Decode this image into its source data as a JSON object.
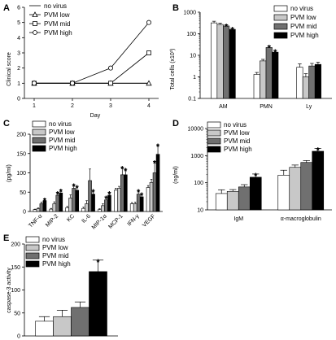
{
  "colors": {
    "no_virus": "#ffffff",
    "pvm_low": "#c8c8c8",
    "pvm_mid": "#707070",
    "pvm_high": "#000000"
  },
  "legend_labels": [
    "no virus",
    "PVM low",
    "PVM mid",
    "PVM high"
  ],
  "chart_data": [
    {
      "panel": "A",
      "type": "line",
      "x": [
        1,
        2,
        3,
        4
      ],
      "xlabel": "Day",
      "ylabel": "Clinical score",
      "ylim": [
        0,
        6
      ],
      "yticks": [
        0,
        1,
        2,
        3,
        4,
        5,
        6
      ],
      "legend": "top-left",
      "series": [
        {
          "name": "no virus",
          "marker": "none",
          "values": [
            1,
            1,
            1,
            1
          ]
        },
        {
          "name": "PVM low",
          "marker": "triangle",
          "values": [
            1,
            1,
            1,
            1
          ]
        },
        {
          "name": "PVM mid",
          "marker": "square",
          "values": [
            1,
            1,
            1,
            3
          ]
        },
        {
          "name": "PVM high",
          "marker": "circle",
          "values": [
            1,
            1,
            2,
            5
          ]
        }
      ]
    },
    {
      "panel": "B",
      "type": "bar",
      "scale": "log",
      "categories": [
        "AM",
        "PMN",
        "Ly"
      ],
      "ylabel": "Total cells (x10³)",
      "ylim": [
        0.1,
        1000
      ],
      "ytick_labels": [
        "1000",
        "100",
        "10",
        "1",
        "0.1"
      ],
      "legend": "top-right",
      "series": [
        {
          "name": "no virus",
          "values": [
            320,
            1.3,
            2.8
          ],
          "errors": [
            60,
            0.3,
            1.2
          ]
        },
        {
          "name": "PVM low",
          "values": [
            270,
            5.5,
            1.0
          ],
          "errors": [
            40,
            1.0,
            0.4
          ]
        },
        {
          "name": "PVM mid",
          "values": [
            230,
            23,
            3.2
          ],
          "errors": [
            30,
            4,
            1.0
          ]
        },
        {
          "name": "PVM high",
          "values": [
            160,
            14,
            3.8
          ],
          "errors": [
            20,
            3,
            1.0
          ]
        }
      ],
      "significant": [
        [
          0,
          2
        ],
        [
          0,
          3
        ],
        [
          1,
          2
        ],
        [
          1,
          3
        ]
      ]
    },
    {
      "panel": "C",
      "type": "bar",
      "categories": [
        "TNF-α",
        "MIP-2",
        "KC",
        "IL-6",
        "MIP-1α",
        "MCP-1",
        "IFN-γ",
        "VEGF"
      ],
      "ylabel": "(pg/ml)",
      "ylim": [
        0,
        200
      ],
      "yticks": [
        0,
        50,
        100,
        150,
        200
      ],
      "legend": "top-left",
      "series": [
        {
          "name": "no virus",
          "values": [
            5,
            6,
            10,
            8,
            5,
            55,
            20,
            62
          ],
          "errors": [
            1,
            2,
            3,
            3,
            2,
            5,
            3,
            5
          ]
        },
        {
          "name": "PVM low",
          "values": [
            7,
            20,
            35,
            20,
            15,
            60,
            20,
            75
          ],
          "errors": [
            2,
            5,
            8,
            8,
            5,
            5,
            4,
            8
          ]
        },
        {
          "name": "PVM mid",
          "values": [
            20,
            42,
            60,
            80,
            30,
            95,
            45,
            100
          ],
          "errors": [
            4,
            8,
            10,
            30,
            8,
            20,
            10,
            30
          ]
        },
        {
          "name": "PVM high",
          "values": [
            28,
            48,
            55,
            45,
            42,
            95,
            38,
            148
          ],
          "errors": [
            5,
            8,
            10,
            10,
            8,
            15,
            8,
            25
          ]
        }
      ],
      "significant": [
        [
          0,
          3
        ],
        [
          1,
          2
        ],
        [
          1,
          3
        ],
        [
          2,
          2
        ],
        [
          2,
          3
        ],
        [
          3,
          3
        ],
        [
          4,
          2
        ],
        [
          4,
          3
        ],
        [
          5,
          2
        ],
        [
          5,
          3
        ],
        [
          6,
          2
        ],
        [
          6,
          3
        ],
        [
          7,
          2
        ],
        [
          7,
          3
        ]
      ]
    },
    {
      "panel": "D",
      "type": "bar",
      "scale": "log",
      "categories": [
        "IgM",
        "α-macroglobulin"
      ],
      "ylabel": "(ng/ml)",
      "ylim": [
        10,
        10000
      ],
      "ytick_labels": [
        "10000",
        "1000",
        "100",
        "10"
      ],
      "legend": "top-left",
      "series": [
        {
          "name": "no virus",
          "values": [
            40,
            190
          ],
          "errors": [
            15,
            100
          ]
        },
        {
          "name": "PVM low",
          "values": [
            48,
            370
          ],
          "errors": [
            8,
            80
          ]
        },
        {
          "name": "PVM mid",
          "values": [
            70,
            560
          ],
          "errors": [
            15,
            100
          ]
        },
        {
          "name": "PVM high",
          "values": [
            160,
            1450
          ],
          "errors": [
            50,
            400
          ]
        }
      ],
      "significant": [
        [
          0,
          3
        ],
        [
          1,
          3
        ]
      ]
    },
    {
      "panel": "E",
      "type": "bar",
      "categories": [
        ""
      ],
      "ylabel": "caspase-3 activity",
      "ylim": [
        0,
        200
      ],
      "yticks": [
        0,
        50,
        100,
        150,
        200
      ],
      "legend": "top-left",
      "series": [
        {
          "name": "no virus",
          "values": [
            32
          ],
          "errors": [
            10
          ]
        },
        {
          "name": "PVM low",
          "values": [
            42
          ],
          "errors": [
            14
          ]
        },
        {
          "name": "PVM mid",
          "values": [
            62
          ],
          "errors": [
            12
          ]
        },
        {
          "name": "PVM high",
          "values": [
            140
          ],
          "errors": [
            25
          ]
        }
      ],
      "significant": [
        [
          0,
          3
        ]
      ]
    }
  ]
}
